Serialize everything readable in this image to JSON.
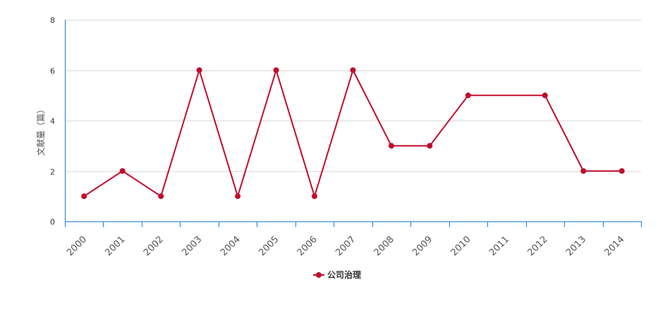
{
  "chart_data": {
    "type": "line",
    "title": "",
    "xlabel": "",
    "ylabel": "文献量（篇）",
    "categories": [
      "2000",
      "2001",
      "2002",
      "2003",
      "2004",
      "2005",
      "2006",
      "2007",
      "2008",
      "2009",
      "2010",
      "2011",
      "2012",
      "2013",
      "2014"
    ],
    "series": [
      {
        "name": "公司治理",
        "color": "#c00d2c",
        "values": [
          1,
          2,
          1,
          6,
          1,
          6,
          1,
          6,
          3,
          3,
          5,
          null,
          5,
          2,
          2
        ]
      }
    ],
    "ylim": [
      0,
      8
    ],
    "yticks": [
      0,
      2,
      4,
      6,
      8
    ],
    "grid": true,
    "legend": "bottom-center"
  }
}
